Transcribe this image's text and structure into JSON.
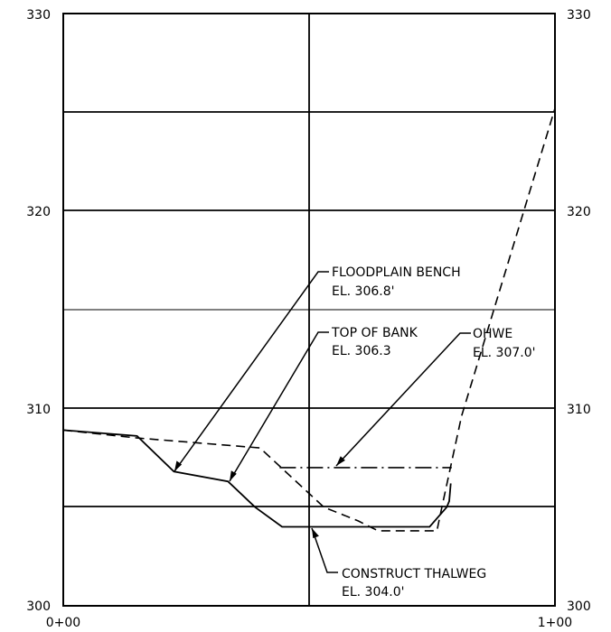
{
  "axis": {
    "y_ticks_left": [
      "330",
      "320",
      "310",
      "300"
    ],
    "y_ticks_right": [
      "330",
      "320",
      "310",
      "300"
    ],
    "x_ticks": [
      "0+00",
      "1+00"
    ]
  },
  "chart_data": {
    "type": "line",
    "title": "",
    "xlabel": "",
    "ylabel": "",
    "xlim": [
      0,
      100
    ],
    "ylim": [
      300,
      330
    ],
    "series": [
      {
        "style": "dashed",
        "points": [
          [
            0,
            308.9
          ],
          [
            15,
            308.5
          ],
          [
            40,
            308.0
          ],
          [
            53,
            305.0
          ],
          [
            60,
            304.3
          ],
          [
            64,
            303.8
          ],
          [
            76,
            303.8
          ],
          [
            77,
            305.0
          ],
          [
            81,
            309.6
          ],
          [
            100,
            325.2
          ]
        ]
      },
      {
        "style": "solid",
        "points": [
          [
            0,
            308.9
          ],
          [
            15,
            308.6
          ],
          [
            22.5,
            306.8
          ],
          [
            33.5,
            306.3
          ],
          [
            39,
            305.0
          ],
          [
            44.5,
            304.0
          ],
          [
            74.5,
            304.0
          ],
          [
            78,
            305.0
          ],
          [
            78.5,
            305.3
          ],
          [
            78.8,
            306.2
          ]
        ]
      },
      {
        "style": "dash-dot",
        "points": [
          [
            44,
            307.0
          ],
          [
            79,
            307.0
          ]
        ]
      }
    ],
    "annotations": [
      {
        "line1": "FLOODPLAIN BENCH",
        "line2": "EL. 306.8'",
        "x": 22.5,
        "y": 306.8
      },
      {
        "line1": "TOP OF BANK",
        "line2": "EL. 306.3",
        "x": 33.5,
        "y": 306.3
      },
      {
        "line1": "OHWE",
        "line2": "EL. 307.0'",
        "x": 55,
        "y": 307.0
      },
      {
        "line1": "CONSTRUCT THALWEG",
        "line2": "EL. 304.0'",
        "x": 50,
        "y": 304.0
      }
    ]
  }
}
